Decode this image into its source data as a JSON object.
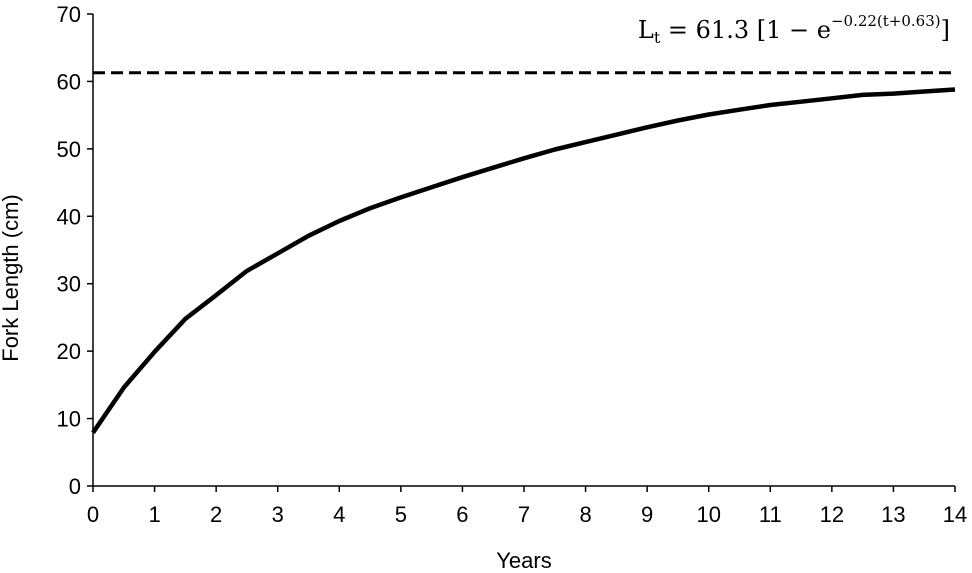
{
  "chart_data": {
    "type": "line",
    "xlabel": "Years",
    "ylabel": "Fork Length (cm)",
    "xlim": [
      0,
      14
    ],
    "ylim": [
      0,
      70
    ],
    "x_ticks": [
      "0",
      "1",
      "2",
      "3",
      "4",
      "5",
      "6",
      "7",
      "8",
      "9",
      "10",
      "11",
      "12",
      "13",
      "14"
    ],
    "y_ticks": [
      "0",
      "10",
      "20",
      "30",
      "40",
      "50",
      "60",
      "70"
    ],
    "grid": false,
    "legend": "none",
    "equation": {
      "lhs": "L",
      "lhs_sub": "t",
      "equals": " = ",
      "coef": "61.3",
      "open": " [1 − e",
      "exponent": "−0.22(t+0.63)",
      "close": "]"
    },
    "series": [
      {
        "style": "solid",
        "x": [
          0,
          0.5,
          1,
          1.5,
          2,
          2.5,
          3,
          3.5,
          4,
          4.5,
          5,
          5.5,
          6,
          6.5,
          7,
          7.5,
          8,
          8.5,
          9,
          9.5,
          10,
          10.5,
          11,
          11.5,
          12,
          12.5,
          13,
          13.5,
          14
        ],
        "y": [
          7.9,
          14.6,
          19.9,
          24.8,
          28.3,
          31.9,
          34.5,
          37.1,
          39.3,
          41.2,
          42.8,
          44.3,
          45.8,
          47.2,
          48.6,
          49.9,
          51.0,
          52.1,
          53.2,
          54.2,
          55.1,
          55.8,
          56.5,
          57.0,
          57.5,
          58.0,
          58.2,
          58.5,
          58.8
        ],
        "color": "#000000"
      },
      {
        "style": "dashed",
        "x": [
          0,
          14
        ],
        "y": [
          61.3,
          61.3
        ],
        "color": "#000000"
      }
    ]
  }
}
